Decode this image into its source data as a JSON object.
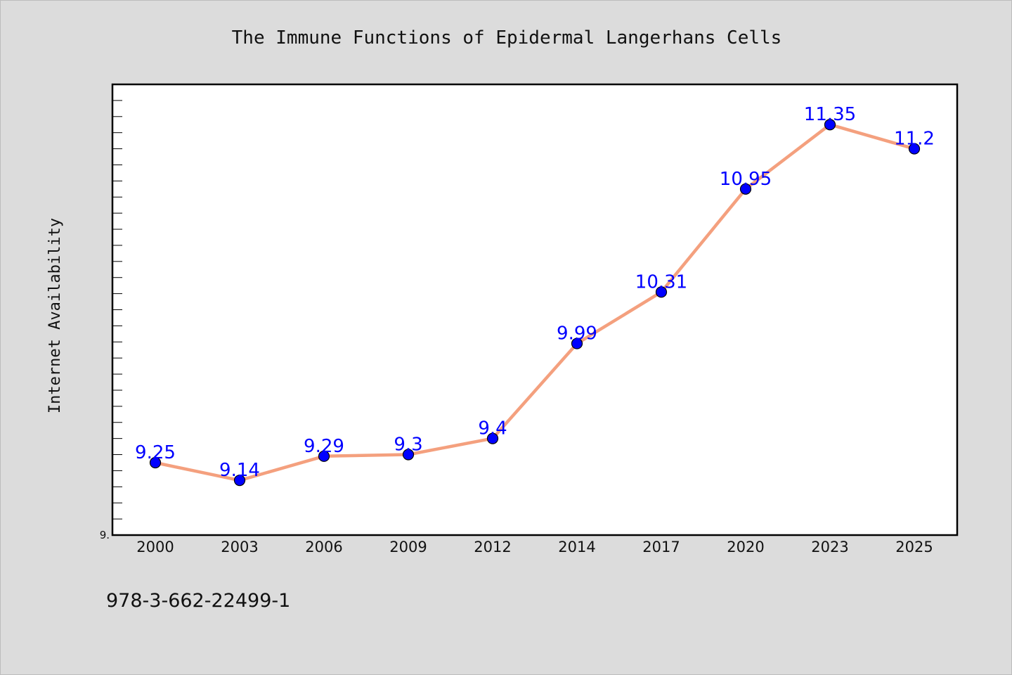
{
  "chart_data": {
    "type": "line",
    "title": "The Immune Functions of Epidermal Langerhans Cells",
    "xlabel": "",
    "ylabel": "Internet Availability",
    "categories": [
      "2000",
      "2003",
      "2006",
      "2009",
      "2012",
      "2014",
      "2017",
      "2020",
      "2023",
      "2025"
    ],
    "series": [
      {
        "name": "",
        "values": [
          9.25,
          9.14,
          9.29,
          9.3,
          9.4,
          9.99,
          10.31,
          10.95,
          11.35,
          11.2
        ],
        "data_labels": [
          "9.25",
          "9.14",
          "9.29",
          "9.3",
          "9.4",
          "9.99",
          "10.31",
          "10.95",
          "11.35",
          "11.2"
        ]
      }
    ],
    "ylim": [
      8.8,
      11.6
    ],
    "y_tick_labels": [
      "9."
    ],
    "grid": false,
    "line_color": "#f4a07e",
    "marker_color": "#0000ff",
    "label_color": "#0000ff"
  },
  "footer": {
    "text": "978-3-662-22499-1"
  }
}
